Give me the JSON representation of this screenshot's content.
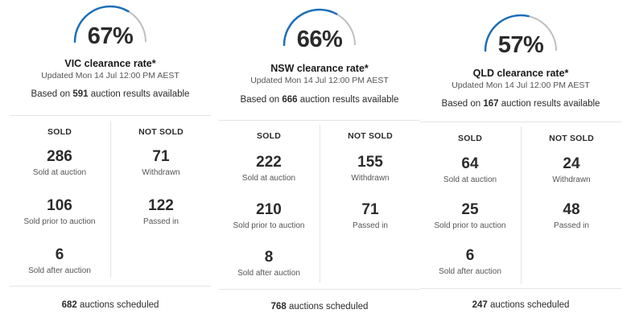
{
  "panels": [
    {
      "percent": 67,
      "percent_label": "67%",
      "title": "VIC clearance rate*",
      "updated": "Updated Mon 14 Jul 12:00 PM AEST",
      "based_prefix": "Based on ",
      "results_count": "591",
      "based_suffix": " auction results available",
      "sold_header": "SOLD",
      "not_sold_header": "NOT SOLD",
      "sold_at_auction": "286",
      "sold_at_auction_label": "Sold at auction",
      "sold_prior": "106",
      "sold_prior_label": "Sold prior to auction",
      "sold_after": "6",
      "sold_after_label": "Sold after auction",
      "withdrawn": "71",
      "withdrawn_label": "Withdrawn",
      "passed_in": "122",
      "passed_in_label": "Passed in",
      "scheduled_count": "682",
      "scheduled_suffix": " auctions scheduled"
    },
    {
      "percent": 66,
      "percent_label": "66%",
      "title": "NSW clearance rate*",
      "updated": "Updated Mon 14 Jul 12:00 PM AEST",
      "based_prefix": "Based on ",
      "results_count": "666",
      "based_suffix": " auction results available",
      "sold_header": "SOLD",
      "not_sold_header": "NOT SOLD",
      "sold_at_auction": "222",
      "sold_at_auction_label": "Sold at auction",
      "sold_prior": "210",
      "sold_prior_label": "Sold prior to auction",
      "sold_after": "8",
      "sold_after_label": "Sold after auction",
      "withdrawn": "155",
      "withdrawn_label": "Withdrawn",
      "passed_in": "71",
      "passed_in_label": "Passed in",
      "scheduled_count": "768",
      "scheduled_suffix": " auctions scheduled"
    },
    {
      "percent": 57,
      "percent_label": "57%",
      "title": "QLD clearance rate*",
      "updated": "Updated Mon 14 Jul 12:00 PM AEST",
      "based_prefix": "Based on ",
      "results_count": "167",
      "based_suffix": " auction results available",
      "sold_header": "SOLD",
      "not_sold_header": "NOT SOLD",
      "sold_at_auction": "64",
      "sold_at_auction_label": "Sold at auction",
      "sold_prior": "25",
      "sold_prior_label": "Sold prior to auction",
      "sold_after": "6",
      "sold_after_label": "Sold after auction",
      "withdrawn": "24",
      "withdrawn_label": "Withdrawn",
      "passed_in": "48",
      "passed_in_label": "Passed in",
      "scheduled_count": "247",
      "scheduled_suffix": " auctions scheduled"
    }
  ],
  "colors": {
    "gauge_fill": "#1d6fb8",
    "gauge_track": "#bfbfbf"
  }
}
